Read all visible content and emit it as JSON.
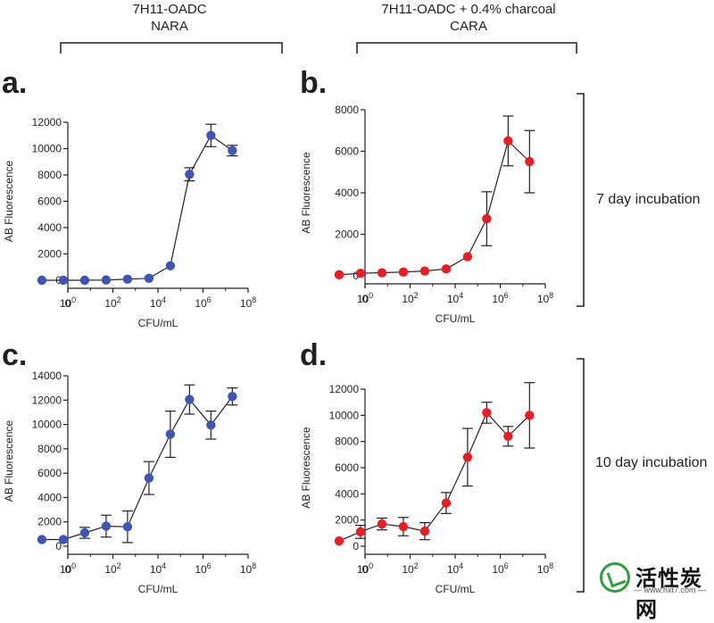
{
  "headers": {
    "left_line1": "7H11-OADC",
    "left_line2": "NARA",
    "right_line1": "7H11-OADC + 0.4% charcoal",
    "right_line2": "CARA"
  },
  "row_labels": {
    "top": "7 day incubation",
    "bottom": "10 day incubation"
  },
  "watermark": {
    "name": "活性炭网",
    "url": "— www.hxt7.com —"
  },
  "colors": {
    "blue": "#3f54b4",
    "red": "#ec1c24",
    "ink": "#231f20"
  },
  "chart_data": [
    {
      "type": "line",
      "panel": "a.",
      "xlabel": "CFU/mL",
      "ylabel": "AB Fluorescence",
      "xscale": "log10",
      "xlim": [
        0,
        8
      ],
      "x_ticks": [
        "0",
        "10^0",
        "10^2",
        "10^4",
        "10^6",
        "10^8"
      ],
      "ylim": [
        0,
        12000
      ],
      "y_ticks": [
        0,
        2000,
        4000,
        6000,
        8000,
        10000,
        12000
      ],
      "y_tick_labels": [
        "0",
        "2000",
        "4000",
        "6000",
        "8000",
        "10000",
        "12000"
      ],
      "color": "#3f54b4",
      "series": [
        {
          "name": "NARA 7 day",
          "x": [
            -1.15,
            -0.2,
            0.75,
            1.7,
            2.65,
            3.6,
            4.55,
            5.4,
            6.35,
            7.3
          ],
          "y": [
            0,
            0,
            0,
            20,
            80,
            150,
            1100,
            8050,
            11000,
            9850
          ],
          "err": [
            0,
            0,
            0,
            0,
            0,
            0,
            0,
            500,
            850,
            400
          ]
        }
      ]
    },
    {
      "type": "line",
      "panel": "b.",
      "xlabel": "CFU/mL",
      "ylabel": "AB Fluorescence",
      "xscale": "log10",
      "xlim": [
        0,
        8
      ],
      "x_ticks": [
        "0",
        "10^0",
        "10^2",
        "10^4",
        "10^6",
        "10^8"
      ],
      "ylim": [
        0,
        8000
      ],
      "y_ticks": [
        0,
        2000,
        4000,
        6000,
        8000
      ],
      "y_tick_labels": [
        "0",
        "2000",
        "4000",
        "6000",
        "8000"
      ],
      "color": "#ec1c24",
      "series": [
        {
          "name": "CARA 7 day",
          "x": [
            -1.15,
            -0.2,
            0.75,
            1.7,
            2.65,
            3.6,
            4.55,
            5.4,
            6.35,
            7.3
          ],
          "y": [
            50,
            120,
            150,
            180,
            230,
            330,
            920,
            2750,
            6500,
            5500
          ],
          "err": [
            0,
            0,
            0,
            0,
            0,
            0,
            0,
            1300,
            1200,
            1500
          ]
        }
      ]
    },
    {
      "type": "line",
      "panel": "c.",
      "xlabel": "CFU/mL",
      "ylabel": "AB Fluorescence",
      "xscale": "log10",
      "xlim": [
        0,
        8
      ],
      "x_ticks": [
        "0",
        "10^0",
        "10^2",
        "10^4",
        "10^6",
        "10^8"
      ],
      "ylim": [
        0,
        14000
      ],
      "y_ticks": [
        0,
        2000,
        4000,
        6000,
        8000,
        10000,
        12000,
        14000
      ],
      "y_tick_labels": [
        "0",
        "2000",
        "4000",
        "6000",
        "8000",
        "10000",
        "12000",
        "14000"
      ],
      "color": "#3f54b4",
      "series": [
        {
          "name": "NARA 10 day",
          "x": [
            -1.15,
            -0.2,
            0.75,
            1.7,
            2.65,
            3.6,
            4.55,
            5.4,
            6.35,
            7.3
          ],
          "y": [
            550,
            550,
            1100,
            1650,
            1600,
            5600,
            9200,
            12050,
            9950,
            12300
          ],
          "err": [
            0,
            0,
            450,
            900,
            1300,
            1350,
            1900,
            1200,
            1150,
            700
          ]
        }
      ]
    },
    {
      "type": "line",
      "panel": "d.",
      "xlabel": "CFU/mL",
      "ylabel": "AB Fluorescence",
      "xscale": "log10",
      "xlim": [
        0,
        8
      ],
      "x_ticks": [
        "0",
        "10^0",
        "10^2",
        "10^4",
        "10^6",
        "10^8"
      ],
      "ylim": [
        0,
        12000
      ],
      "y_ticks": [
        0,
        2000,
        4000,
        6000,
        8000,
        10000,
        12000
      ],
      "y_tick_labels": [
        "0",
        "2000",
        "4000",
        "6000",
        "8000",
        "10000",
        "12000"
      ],
      "color": "#ec1c24",
      "series": [
        {
          "name": "CARA 10 day",
          "x": [
            -1.15,
            -0.2,
            0.75,
            1.7,
            2.65,
            3.6,
            4.55,
            5.4,
            6.35,
            7.3
          ],
          "y": [
            400,
            1100,
            1700,
            1500,
            1150,
            3300,
            6800,
            10200,
            8400,
            10000
          ],
          "err": [
            0,
            500,
            450,
            700,
            650,
            800,
            2200,
            800,
            750,
            2500
          ]
        }
      ]
    }
  ]
}
